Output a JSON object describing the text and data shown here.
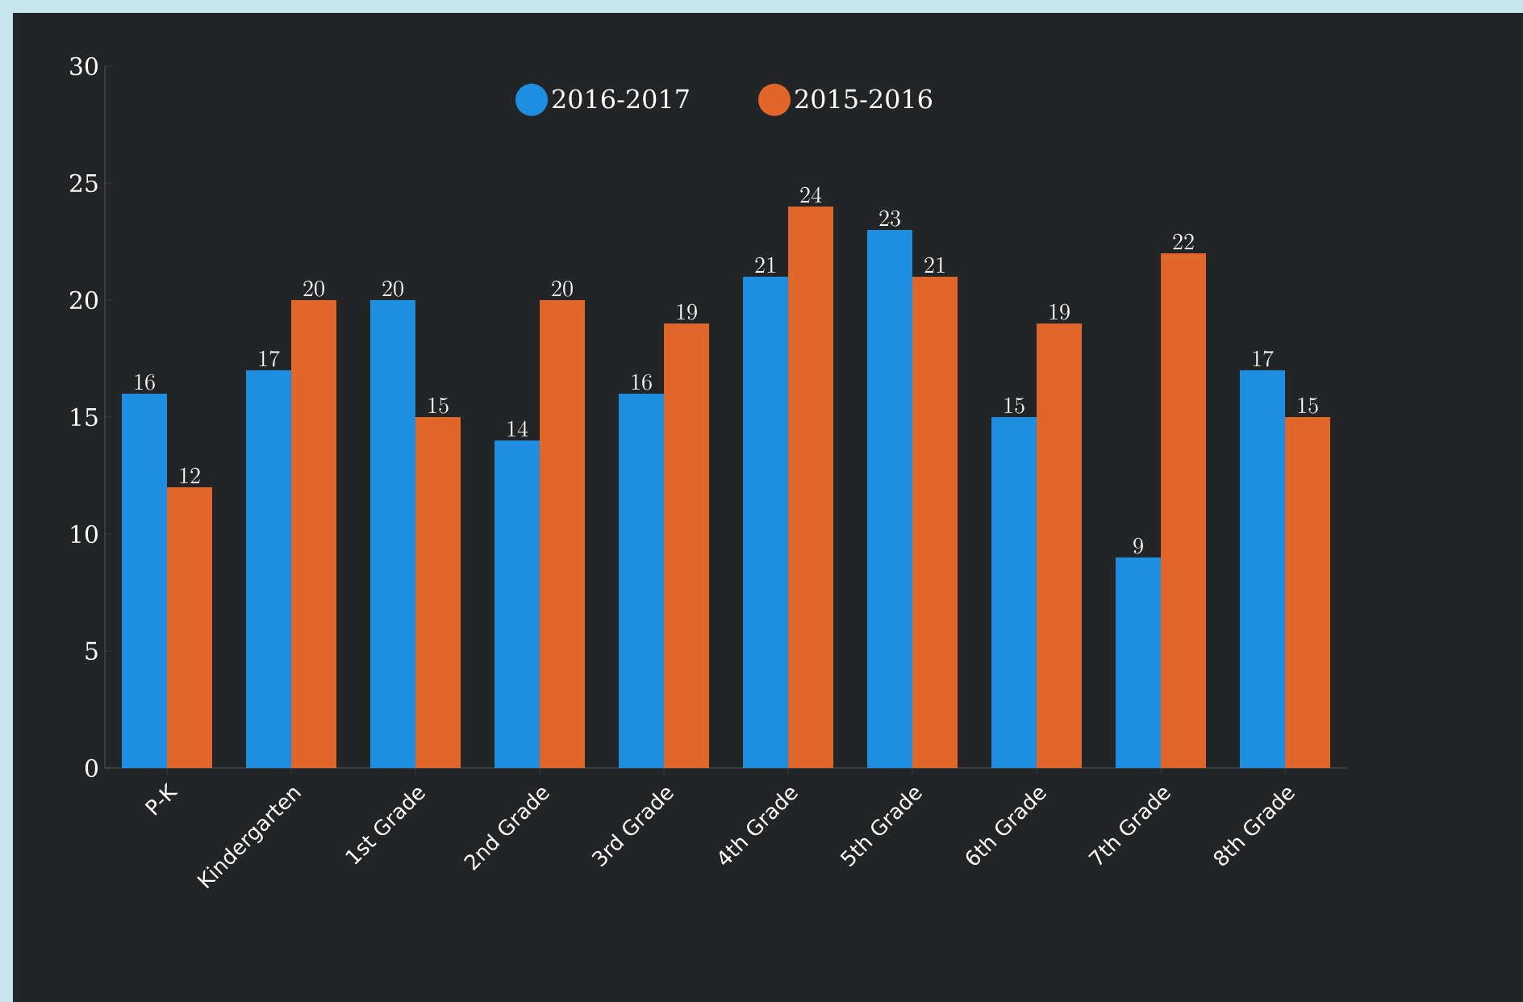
{
  "chart_data": {
    "type": "bar",
    "categories": [
      "P-K",
      "Kindergarten",
      "1st Grade",
      "2nd Grade",
      "3rd Grade",
      "4th Grade",
      "5th Grade",
      "6th Grade",
      "7th Grade",
      "8th Grade"
    ],
    "series": [
      {
        "name": "2016-2017",
        "color": "#1e8fe0",
        "values": [
          16,
          17,
          20,
          14,
          16,
          21,
          23,
          15,
          9,
          17
        ]
      },
      {
        "name": "2015-2016",
        "color": "#e0662a",
        "values": [
          12,
          20,
          15,
          20,
          19,
          24,
          21,
          19,
          22,
          15
        ]
      }
    ],
    "ylim": [
      0,
      30
    ],
    "yticks": [
      0,
      5,
      10,
      15,
      20,
      25,
      30
    ],
    "legend": "top",
    "marker": "circle",
    "data_labels": true
  }
}
